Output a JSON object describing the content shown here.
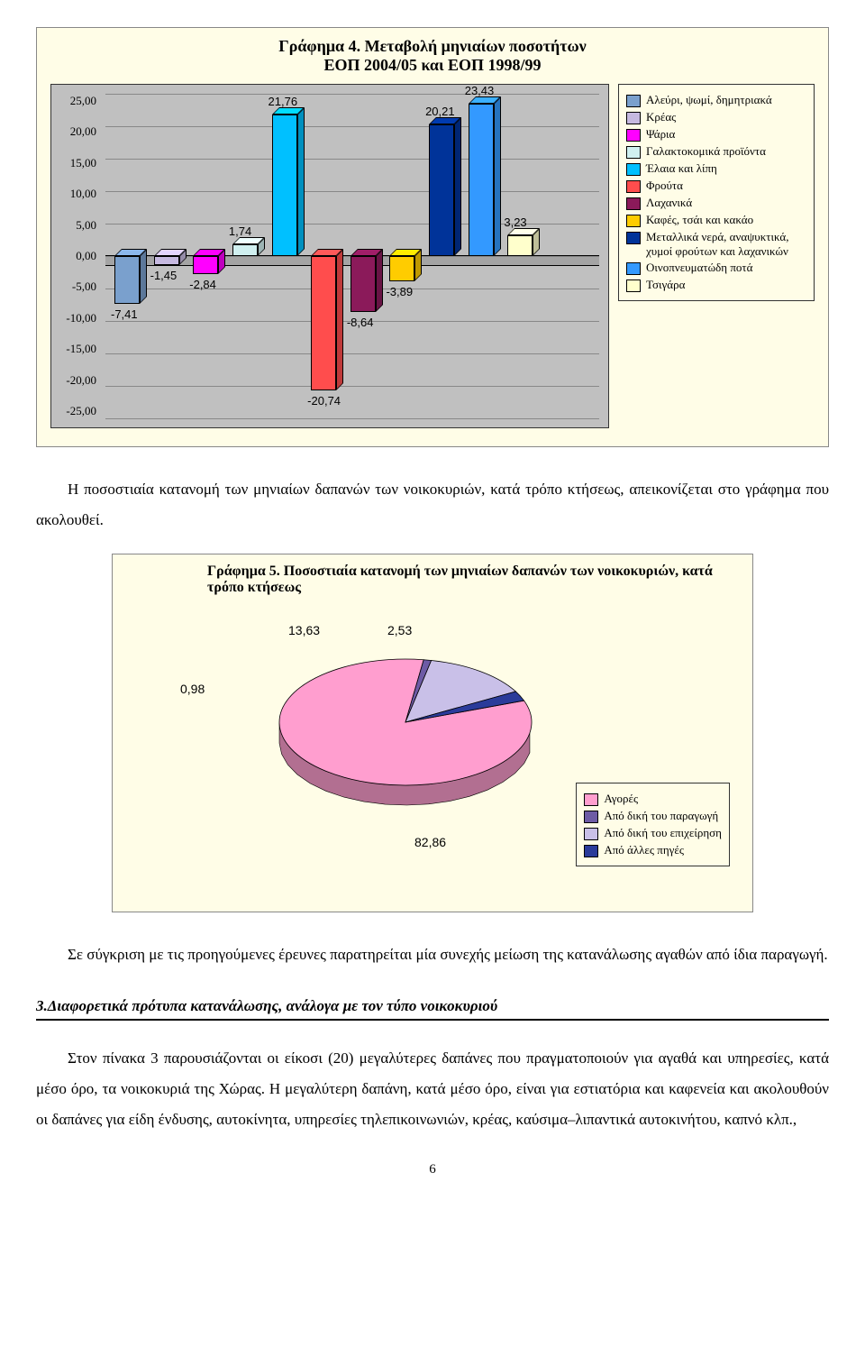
{
  "chart4": {
    "title": "Γράφημα 4. Μεταβολή μηνιαίων ποσοτήτων\nΕΟΠ 2004/05 και ΕΟΠ 1998/99",
    "type": "bar",
    "ymin": -25,
    "ymax": 25,
    "ystep": 5,
    "y_ticks": [
      "25,00",
      "20,00",
      "15,00",
      "10,00",
      "5,00",
      "0,00",
      "-5,00",
      "-10,00",
      "-15,00",
      "-20,00",
      "-25,00"
    ],
    "bg": "#fffde7",
    "plot_bg": "#c0c0c0",
    "grid_color": "#888888",
    "series": [
      {
        "label": "Αλεύρι, ψωμί, δημητριακά",
        "value": -7.41,
        "color": "#7aa0cd"
      },
      {
        "label": "Κρέας",
        "value": -1.45,
        "color": "#c6b9e0"
      },
      {
        "label": "Ψάρια",
        "value": -2.84,
        "color": "#ff00ff"
      },
      {
        "label": "Γαλακτοκομικά προϊόντα",
        "value": 1.74,
        "color": "#d0f0f0"
      },
      {
        "label": "Έλαια και λίπη",
        "value": 21.76,
        "color": "#00c0ff"
      },
      {
        "label": "Φρούτα",
        "value": -20.74,
        "color": "#ff4d4d"
      },
      {
        "label": "Λαχανικά",
        "value": -8.64,
        "color": "#8b1a5a"
      },
      {
        "label": "Καφές, τσάι και κακάο",
        "value": -3.89,
        "color": "#ffcc00"
      },
      {
        "label": "Μεταλλικά νερά, αναψυκτικά, χυμοί φρούτων και λαχανικών",
        "value": 20.21,
        "color": "#003399"
      },
      {
        "label": "Οινοπνευματώδη ποτά",
        "value": 23.43,
        "color": "#3399ff"
      },
      {
        "label": "Τσιγάρα",
        "value": 3.23,
        "color": "#ffffcc"
      }
    ],
    "bar_labels": [
      "-7,41",
      "-1,45",
      "-2,84",
      "1,74",
      "21,76",
      "-20,74",
      "-8,64",
      "-3,89",
      "20,21",
      "23,43",
      "3,23"
    ]
  },
  "para1": "Η ποσοστιαία κατανομή των μηνιαίων δαπανών των νοικοκυριών, κατά τρόπο κτήσεως, απεικονίζεται στο γράφημα που ακολουθεί.",
  "chart5": {
    "title": "Γράφημα 5. Ποσοστιαία κατανομή των μηνιαίων δαπανών  των νοικοκυριών, κατά τρόπο κτήσεως",
    "type": "pie",
    "bg": "#fffde7",
    "slices": [
      {
        "label": "Αγορές",
        "value": 82.86,
        "color": "#ff9ecf",
        "text": "82,86"
      },
      {
        "label": "Από δική του παραγωγή",
        "value": 0.98,
        "color": "#6d5ba5",
        "text": "0,98"
      },
      {
        "label": "Από δική του επιχείρηση",
        "value": 13.63,
        "color": "#c9c0e8",
        "text": "13,63"
      },
      {
        "label": "Από άλλες πηγές",
        "value": 2.53,
        "color": "#2a3b9a",
        "text": "2,53"
      }
    ]
  },
  "para2": "Σε σύγκριση με τις προηγούμενες έρευνες παρατηρείται μία συνεχής μείωση της κατανάλωσης αγαθών από ίδια παραγωγή.",
  "section": {
    "head": "3.Διαφορετικά πρότυπα κατανάλωσης, ανάλογα με τον τύπο νοικοκυριού",
    "body": "Στον πίνακα 3 παρουσιάζονται οι είκοσι (20) μεγαλύτερες δαπάνες που πραγματοποιούν για αγαθά και υπηρεσίες, κατά μέσο όρο, τα νοικοκυριά της Χώρας. Η μεγαλύτερη δαπάνη, κατά μέσο όρο, είναι για εστιατόρια και καφενεία και ακολουθούν οι δαπάνες για είδη ένδυσης, αυτοκίνητα, υπηρεσίες τηλεπικοινωνιών, κρέας, καύσιμα–λιπαντικά αυτοκινήτου, καπνό κλπ.,"
  },
  "pagenum": "6"
}
